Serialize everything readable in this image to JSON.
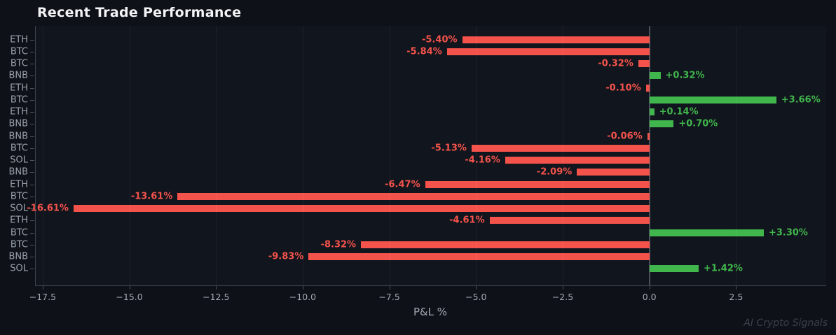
{
  "watermark": "AI Crypto Signals",
  "colors": {
    "background": "#0e1117",
    "plot_background": "#11151d",
    "positive": "#40b64c",
    "negative": "#f4534c",
    "axis_spine": "#3c434e",
    "tick_mark": "#4a515c",
    "tick_label": "#a3a9b3",
    "category_label": "#9aa1ab",
    "grid": "rgba(255,255,255,0.055)",
    "zero_line": "#464d58",
    "title": "#f2f4f6",
    "watermark": "#3a404a"
  },
  "chart_data": {
    "type": "bar",
    "orientation": "horizontal",
    "title": "Recent Trade Performance",
    "xlabel": "P&L %",
    "ylabel": "",
    "categories": [
      "ETH",
      "BTC",
      "BTC",
      "BNB",
      "ETH",
      "BTC",
      "ETH",
      "BNB",
      "BNB",
      "BTC",
      "SOL",
      "BNB",
      "ETH",
      "BTC",
      "SOL",
      "ETH",
      "BTC",
      "BTC",
      "BNB",
      "SOL"
    ],
    "values": [
      -5.4,
      -5.84,
      -0.32,
      0.32,
      -0.1,
      3.66,
      0.14,
      0.7,
      -0.06,
      -5.13,
      -4.16,
      -2.09,
      -6.47,
      -13.61,
      -16.61,
      -4.61,
      3.3,
      -8.32,
      -9.83,
      1.42
    ],
    "labels": [
      "-5.40%",
      "-5.84%",
      "-0.32%",
      "+0.32%",
      "-0.10%",
      "+3.66%",
      "+0.14%",
      "+0.70%",
      "-0.06%",
      "-5.13%",
      "-4.16%",
      "-2.09%",
      "-6.47%",
      "-13.61%",
      "-16.61%",
      "-4.61%",
      "+3.30%",
      "-8.32%",
      "-9.83%",
      "+1.42%"
    ],
    "xlim": [
      -17.7,
      5.1
    ],
    "xticks": [
      -17.5,
      -15.0,
      -12.5,
      -10.0,
      -7.5,
      -5.0,
      -2.5,
      0.0,
      2.5
    ],
    "xtick_labels": [
      "−17.5",
      "−15.0",
      "−12.5",
      "−10.0",
      "−7.5",
      "−5.0",
      "−2.5",
      "0.0",
      "2.5"
    ],
    "grid": true,
    "legend": false,
    "zero_line": 0
  }
}
